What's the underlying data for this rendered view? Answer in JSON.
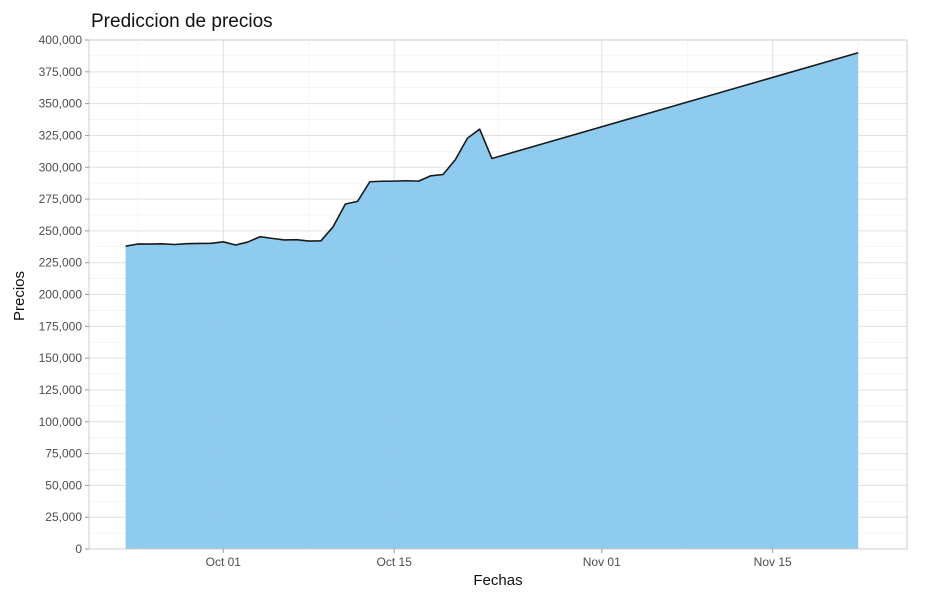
{
  "chart_data": {
    "type": "area",
    "title": "Prediccion de precios",
    "xlabel": "Fechas",
    "ylabel": "Precios",
    "ylim": [
      0,
      400000
    ],
    "xlim": [
      "2023-09-20",
      "2023-11-26"
    ],
    "y_ticks": [
      {
        "value": 0,
        "label": "0"
      },
      {
        "value": 25000,
        "label": "25,000"
      },
      {
        "value": 50000,
        "label": "50,000"
      },
      {
        "value": 75000,
        "label": "75,000"
      },
      {
        "value": 100000,
        "label": "100,000"
      },
      {
        "value": 125000,
        "label": "125,000"
      },
      {
        "value": 150000,
        "label": "150,000"
      },
      {
        "value": 175000,
        "label": "175,000"
      },
      {
        "value": 200000,
        "label": "200,000"
      },
      {
        "value": 225000,
        "label": "225,000"
      },
      {
        "value": 250000,
        "label": "250,000"
      },
      {
        "value": 275000,
        "label": "275,000"
      },
      {
        "value": 300000,
        "label": "300,000"
      },
      {
        "value": 325000,
        "label": "325,000"
      },
      {
        "value": 350000,
        "label": "350,000"
      },
      {
        "value": 375000,
        "label": "375,000"
      },
      {
        "value": 400000,
        "label": "400,000"
      }
    ],
    "x_ticks": [
      {
        "value": "2023-10-01",
        "label": "Oct 01"
      },
      {
        "value": "2023-10-15",
        "label": "Oct 15"
      },
      {
        "value": "2023-11-01",
        "label": "Nov 01"
      },
      {
        "value": "2023-11-15",
        "label": "Nov 15"
      }
    ],
    "grid": true,
    "fill_color": "#85c5ee",
    "line_color": "#1a1a1a",
    "series": [
      {
        "x": [
          "2023-09-23",
          "2023-09-24",
          "2023-09-25",
          "2023-09-26",
          "2023-09-27",
          "2023-09-28",
          "2023-09-29",
          "2023-09-30",
          "2023-10-01",
          "2023-10-02",
          "2023-10-03",
          "2023-10-04",
          "2023-10-05",
          "2023-10-06",
          "2023-10-07",
          "2023-10-08",
          "2023-10-09",
          "2023-10-10",
          "2023-10-11",
          "2023-10-12",
          "2023-10-13",
          "2023-10-14",
          "2023-10-15",
          "2023-10-16",
          "2023-10-17",
          "2023-10-18",
          "2023-10-19",
          "2023-10-20",
          "2023-10-21",
          "2023-10-22",
          "2023-10-23",
          "2023-11-22"
        ],
        "values": [
          238000,
          239700,
          239600,
          239800,
          239300,
          239900,
          240100,
          240200,
          241400,
          238900,
          241200,
          245400,
          244100,
          242900,
          243100,
          242000,
          242200,
          253300,
          271100,
          273200,
          288600,
          289000,
          289100,
          289400,
          289100,
          293300,
          294300,
          305900,
          322900,
          329900,
          306900,
          390000
        ]
      }
    ]
  }
}
